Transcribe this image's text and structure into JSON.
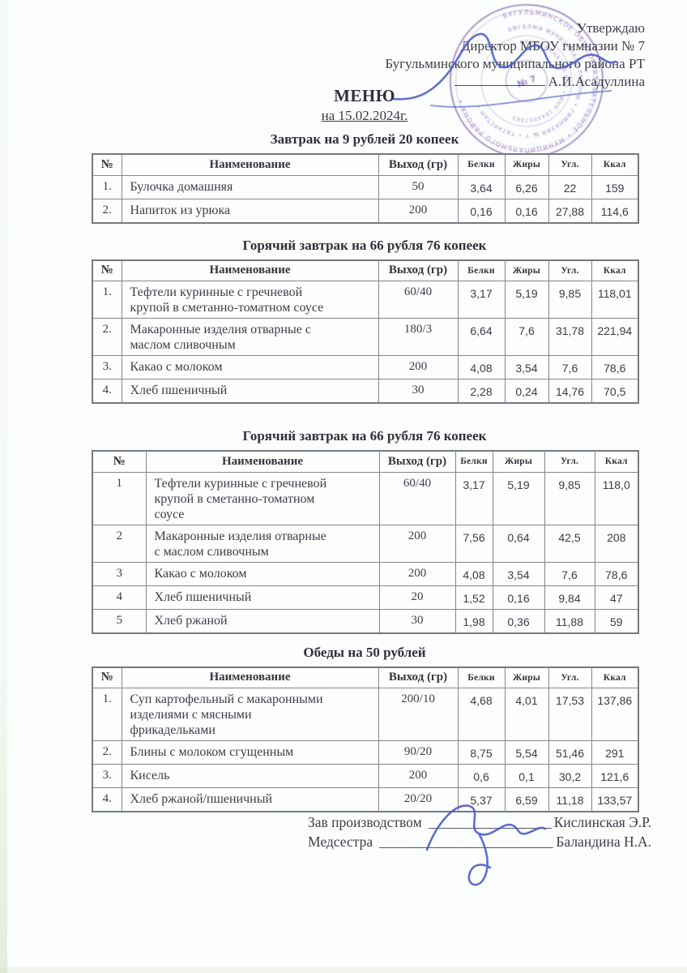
{
  "doc": {
    "title": "МЕНЮ",
    "date_line": "на 15.02.2024г."
  },
  "approval": {
    "line1": "Утверждаю",
    "line2": "Директор МБОУ гимназии № 7",
    "line3": "Бугульминского муниципального района РТ",
    "signer": "А.И.Асадуллина"
  },
  "stamp": {
    "center": "№ 7",
    "rings": [
      "БУГУЛЬМИНСКОЕ ОБЩЕОБРАЗОВАТЕЛЬНОЕ • МУНИЦИПАЛЬНОГО РАЙОНА • ",
      "БӨГЕЛМӘ МУНИЦИПАЛЬ РАЙОНЫ • ГИМНАЗИЯ № 7 • ТАТАРСТАН • ",
      "• МБОУ ГИМНАЗИЯ № 7 • ИНН 1644007083 "
    ]
  },
  "table_columns": [
    "№",
    "Наименование",
    "Выход (гр)",
    "Белки",
    "Жиры",
    "Угл.",
    "Ккал"
  ],
  "sections": [
    {
      "title": "Завтрак на 9 рублей 20 копеек",
      "rows": [
        [
          "1.",
          "Булочка домашняя",
          "50",
          "3,64",
          "6,26",
          "22",
          "159"
        ],
        [
          "2.",
          "Напиток из урюка",
          "200",
          "0,16",
          "0,16",
          "27,88",
          "114,6"
        ]
      ]
    },
    {
      "title": "Горячий завтрак на 66 рубля 76 копеек",
      "rows": [
        [
          "1.",
          "Тефтели куринные с гречневой крупой в сметанно-томатном соусе",
          "60/40",
          "3,17",
          "5,19",
          "9,85",
          "118,01"
        ],
        [
          "2.",
          "Макаронные изделия отварные с маслом сливочным",
          "180/3",
          "6,64",
          "7,6",
          "31,78",
          "221,94"
        ],
        [
          "3.",
          "Какао с молоком",
          "200",
          "4,08",
          "3,54",
          "7,6",
          "78,6"
        ],
        [
          "4.",
          "Хлеб пшеничный",
          "30",
          "2,28",
          "0,24",
          "14,76",
          "70,5"
        ]
      ]
    },
    {
      "title": "Горячий завтрак на 66 рубля 76 копеек",
      "rows": [
        [
          "1",
          "Тефтели куринные с гречневой крупой в сметанно-томатном соусе",
          "60/40",
          "3,17",
          "5,19",
          "9,85",
          "118,0"
        ],
        [
          "2",
          "Макаронные изделия отварные с маслом сливочным",
          "200",
          "7,56",
          "0,64",
          "42,5",
          "208"
        ],
        [
          "3",
          "Какао с молоком",
          "200",
          "4,08",
          "3,54",
          "7,6",
          "78,6"
        ],
        [
          "4",
          "Хлеб пшеничный",
          "20",
          "1,52",
          "0,16",
          "9,84",
          "47"
        ],
        [
          "5",
          "Хлеб ржаной",
          "30",
          "1,98",
          "0,36",
          "11,88",
          "59"
        ]
      ]
    },
    {
      "title": "Обеды на 50 рублей",
      "rows": [
        [
          "1.",
          "Суп картофельный с макаронными изделиями с мясными фрикадельками",
          "200/10",
          "4,68",
          "4,01",
          "17,53",
          "137,86"
        ],
        [
          "2.",
          "Блины с молоком сгущенным",
          "90/20",
          "8,75",
          "5,54",
          "51,46",
          "291"
        ],
        [
          "3.",
          "Кисель",
          "200",
          "0,6",
          "0,1",
          "30,2",
          "121,6"
        ],
        [
          "4.",
          "Хлеб ржаной/пшеничный",
          "20/20",
          "5,37",
          "6,59",
          "11,18",
          "133,57"
        ]
      ]
    }
  ],
  "signatures": [
    {
      "label": "Зав производством",
      "name": "Кислинская Э.Р."
    },
    {
      "label": "Медсестра",
      "name": "Баландина Н.А."
    }
  ],
  "colors": {
    "stamp": "#7d55b2",
    "pen_ink": "#4d5fc7",
    "text": "#3b3e46",
    "table_border": "#82878c"
  }
}
